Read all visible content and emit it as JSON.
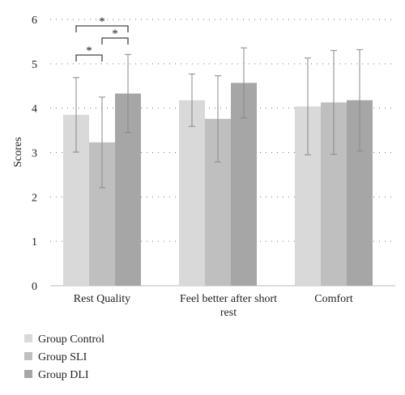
{
  "chart_data": {
    "type": "bar",
    "title": "",
    "xlabel": "",
    "ylabel": "Scores",
    "ylim": [
      0,
      6
    ],
    "yticks": [
      "0",
      "1",
      "2",
      "3",
      "4",
      "5",
      "6"
    ],
    "grid": "dotted horizontal",
    "legend_position": "bottom-left",
    "categories": [
      "Rest Quality",
      "Feel better after short rest",
      "Comfort"
    ],
    "series": [
      {
        "name": "Group Control",
        "color": "#d9d9d9",
        "values": [
          3.85,
          4.18,
          4.04
        ],
        "errors": [
          0.84,
          0.59,
          1.09
        ]
      },
      {
        "name": "Group SLI",
        "color": "#bfbfbf",
        "values": [
          3.23,
          3.76,
          4.13
        ],
        "errors": [
          1.02,
          0.97,
          1.17
        ]
      },
      {
        "name": "Group DLI",
        "color": "#a6a6a6",
        "values": [
          4.33,
          4.57,
          4.18
        ],
        "errors": [
          0.88,
          0.79,
          1.14
        ]
      }
    ],
    "significance": [
      {
        "category": 0,
        "from": 0,
        "to": 1,
        "label": "*"
      },
      {
        "category": 0,
        "from": 1,
        "to": 2,
        "label": "*"
      },
      {
        "category": 0,
        "from": 0,
        "to": 2,
        "label": "*"
      }
    ]
  }
}
